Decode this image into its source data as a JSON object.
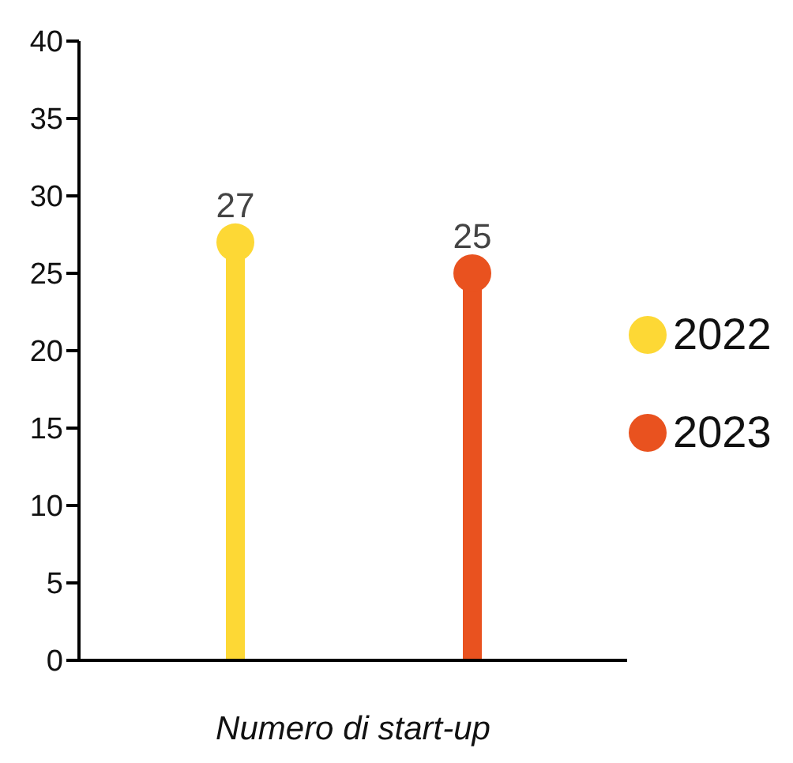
{
  "chart_data": {
    "type": "lollipop",
    "xlabel": "Numero di start-up",
    "categories": [
      null
    ],
    "series": [
      {
        "name": "2022",
        "color": "#fdd835",
        "values": [
          27
        ]
      },
      {
        "name": "2023",
        "color": "#e9521f",
        "values": [
          25
        ]
      }
    ],
    "ylim": [
      0,
      40
    ],
    "yticks": [
      0,
      5,
      10,
      15,
      20,
      25,
      30,
      35,
      40
    ],
    "grid": false,
    "legend": "right",
    "marker": "circle",
    "data_labels": true
  }
}
